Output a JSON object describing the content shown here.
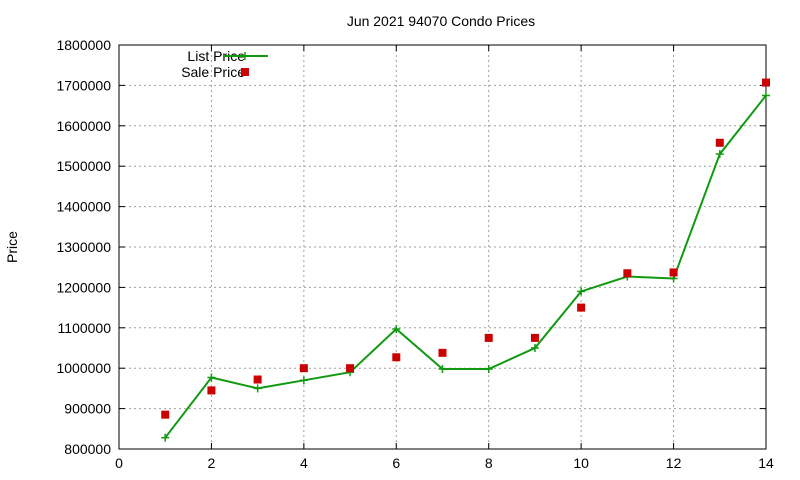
{
  "chart_data": {
    "type": "line",
    "title": "Jun 2021 94070 Condo Prices",
    "xlabel": "",
    "ylabel": "Price",
    "xlim": [
      0,
      14
    ],
    "ylim": [
      800000,
      1800000
    ],
    "x_ticks": [
      0,
      2,
      4,
      6,
      8,
      10,
      12,
      14
    ],
    "y_ticks": [
      800000,
      900000,
      1000000,
      1100000,
      1200000,
      1300000,
      1400000,
      1500000,
      1600000,
      1700000,
      1800000
    ],
    "grid": true,
    "legend_position": "top-left",
    "series": [
      {
        "name": "List Price",
        "style": "line-plus",
        "color": "#119911",
        "x": [
          1,
          2,
          3,
          4,
          5,
          6,
          7,
          8,
          9,
          10,
          11,
          12,
          13,
          14
        ],
        "y": [
          828000,
          977000,
          950000,
          970000,
          990000,
          1097000,
          998000,
          998000,
          1050000,
          1190000,
          1227000,
          1222000,
          1530000,
          1675000
        ]
      },
      {
        "name": "Sale Price",
        "style": "square-points",
        "color": "#cc0000",
        "x": [
          1,
          2,
          3,
          4,
          5,
          6,
          7,
          8,
          9,
          10,
          11,
          12,
          13,
          14
        ],
        "y": [
          885000,
          945000,
          972000,
          1000000,
          1000000,
          1027000,
          1038000,
          1075000,
          1075000,
          1150000,
          1235000,
          1237000,
          1558000,
          1707000
        ]
      }
    ]
  }
}
